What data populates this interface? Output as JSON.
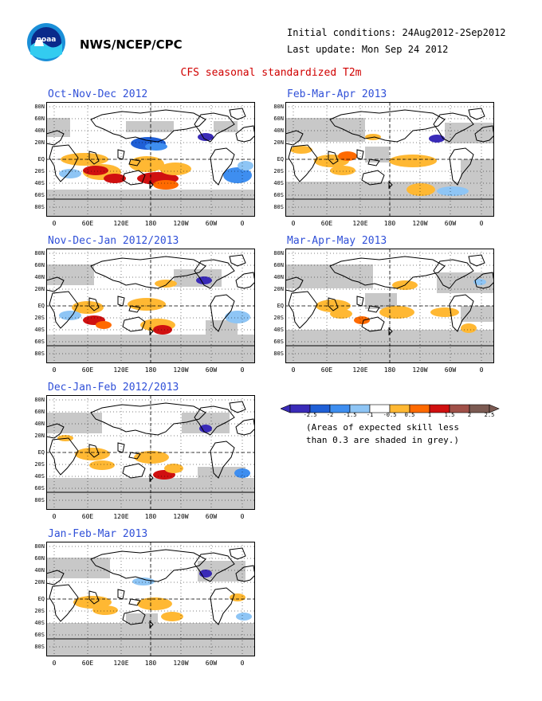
{
  "header": {
    "org": "NWS/NCEP/CPC",
    "initial_conditions": "Initial conditions: 24Aug2012-2Sep2012",
    "last_update": "Last update: Mon Sep 24 2012",
    "title": "CFS seasonal standardized T2m"
  },
  "panels": [
    {
      "title": "Oct-Nov-Dec 2012"
    },
    {
      "title": "Feb-Mar-Apr 2013"
    },
    {
      "title": "Nov-Dec-Jan 2012/2013"
    },
    {
      "title": "Mar-Apr-May 2013"
    },
    {
      "title": "Dec-Jan-Feb 2012/2013"
    },
    {
      "title": "Jan-Feb-Mar 2013"
    }
  ],
  "lat_labels": [
    "80N",
    "60N",
    "40N",
    "20N",
    "EQ",
    "20S",
    "40S",
    "60S",
    "80S"
  ],
  "lon_labels": [
    "0",
    "60E",
    "120E",
    "180",
    "120W",
    "60W",
    "0"
  ],
  "legend": {
    "labels": [
      "-2.5",
      "-2",
      "-1.5",
      "-1",
      "-0.5",
      "0.5",
      "1",
      "1.5",
      "2",
      "2.5"
    ],
    "colors": [
      "#3a2bb8",
      "#1f5fd6",
      "#3e8ef0",
      "#8ec5f5",
      "#ffffff",
      "#ffb833",
      "#ff6a00",
      "#d01010",
      "#a05048",
      "#7b5a52"
    ],
    "note_line1": "(Areas of expected skill less",
    "note_line2": "than 0.3 are shaded in grey.)"
  },
  "colors": {
    "grey_skill": "#c8c8c8",
    "land_outline": "#000000",
    "title_blue": "#3050d8",
    "title_red": "#d00000"
  }
}
